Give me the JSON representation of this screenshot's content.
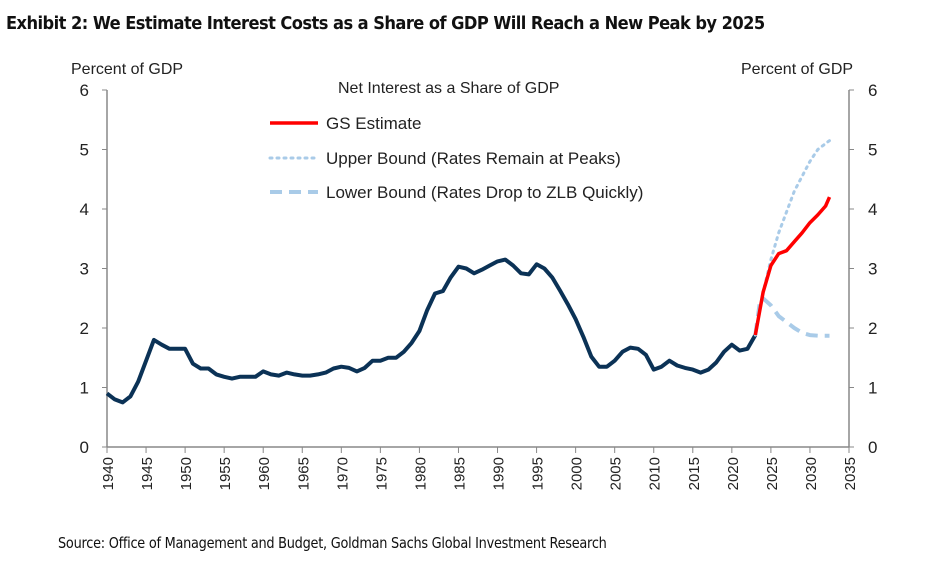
{
  "title": "Exhibit 2: We Estimate Interest Costs as a Share of GDP Will Reach a New Peak by 2025",
  "source": "Source: Office of Management and Budget, Goldman Sachs Global Investment Research",
  "chart_data": {
    "type": "line",
    "title": "Net Interest as a Share of GDP",
    "ylabel_left": "Percent of GDP",
    "ylabel_right": "Percent of GDP",
    "xlabel": "",
    "xlim": [
      1940,
      2035
    ],
    "ylim": [
      0,
      6
    ],
    "x_ticks": [
      1940,
      1945,
      1950,
      1955,
      1960,
      1965,
      1970,
      1975,
      1980,
      1985,
      1990,
      1995,
      2000,
      2005,
      2010,
      2015,
      2020,
      2025,
      2030,
      2035
    ],
    "y_ticks": [
      0,
      1,
      2,
      3,
      4,
      5,
      6
    ],
    "grid": false,
    "legend_position": "top-center",
    "colors": {
      "historical": "#0b3256",
      "gs": "#ff0000",
      "upper": "#a9cbe8",
      "lower": "#a9cbe8"
    },
    "series": [
      {
        "name": "Historical",
        "style": "solid",
        "x": [
          1940,
          1941,
          1942,
          1943,
          1944,
          1945,
          1946,
          1947,
          1948,
          1949,
          1950,
          1951,
          1952,
          1953,
          1954,
          1955,
          1956,
          1957,
          1958,
          1959,
          1960,
          1961,
          1962,
          1963,
          1964,
          1965,
          1966,
          1967,
          1968,
          1969,
          1970,
          1971,
          1972,
          1973,
          1974,
          1975,
          1976,
          1977,
          1978,
          1979,
          1980,
          1981,
          1982,
          1983,
          1984,
          1985,
          1986,
          1987,
          1988,
          1989,
          1990,
          1991,
          1992,
          1993,
          1994,
          1995,
          1996,
          1997,
          1998,
          1999,
          2000,
          2001,
          2002,
          2003,
          2004,
          2005,
          2006,
          2007,
          2008,
          2009,
          2010,
          2011,
          2012,
          2013,
          2014,
          2015,
          2016,
          2017,
          2018,
          2019,
          2020,
          2021,
          2022,
          2023
        ],
        "values": [
          0.9,
          0.8,
          0.75,
          0.85,
          1.1,
          1.45,
          1.8,
          1.72,
          1.65,
          1.65,
          1.65,
          1.4,
          1.32,
          1.32,
          1.22,
          1.18,
          1.15,
          1.18,
          1.18,
          1.18,
          1.27,
          1.22,
          1.2,
          1.25,
          1.22,
          1.2,
          1.2,
          1.22,
          1.25,
          1.32,
          1.35,
          1.33,
          1.27,
          1.33,
          1.45,
          1.45,
          1.5,
          1.5,
          1.6,
          1.75,
          1.95,
          2.3,
          2.58,
          2.62,
          2.85,
          3.03,
          3.0,
          2.92,
          2.98,
          3.05,
          3.12,
          3.15,
          3.05,
          2.92,
          2.9,
          3.07,
          3.0,
          2.85,
          2.63,
          2.4,
          2.15,
          1.85,
          1.52,
          1.35,
          1.35,
          1.45,
          1.6,
          1.67,
          1.65,
          1.55,
          1.3,
          1.35,
          1.45,
          1.37,
          1.33,
          1.3,
          1.25,
          1.3,
          1.42,
          1.6,
          1.72,
          1.62,
          1.65,
          1.88
        ]
      },
      {
        "name": "Upper Bound (Rates Remain at Peaks)",
        "style": "dotted",
        "x": [
          2023,
          2024,
          2025,
          2026,
          2027,
          2028,
          2029,
          2030,
          2031,
          2032.5
        ],
        "values": [
          1.88,
          2.6,
          3.15,
          3.6,
          3.95,
          4.3,
          4.55,
          4.8,
          5.0,
          5.15
        ]
      },
      {
        "name": "Lower Bound (Rates Drop to ZLB Quickly)",
        "style": "dashed",
        "x": [
          2023,
          2023.6,
          2024,
          2025,
          2026,
          2027,
          2028,
          2029,
          2030,
          2031,
          2032.5
        ],
        "values": [
          1.88,
          2.45,
          2.5,
          2.38,
          2.2,
          2.1,
          2.0,
          1.92,
          1.88,
          1.87,
          1.87
        ]
      },
      {
        "name": "GS Estimate",
        "style": "solid",
        "x": [
          2023,
          2024,
          2025,
          2026,
          2027,
          2028,
          2029,
          2030,
          2031,
          2032,
          2032.5
        ],
        "values": [
          1.88,
          2.6,
          3.05,
          3.25,
          3.3,
          3.45,
          3.6,
          3.77,
          3.9,
          4.05,
          4.2
        ]
      }
    ]
  }
}
